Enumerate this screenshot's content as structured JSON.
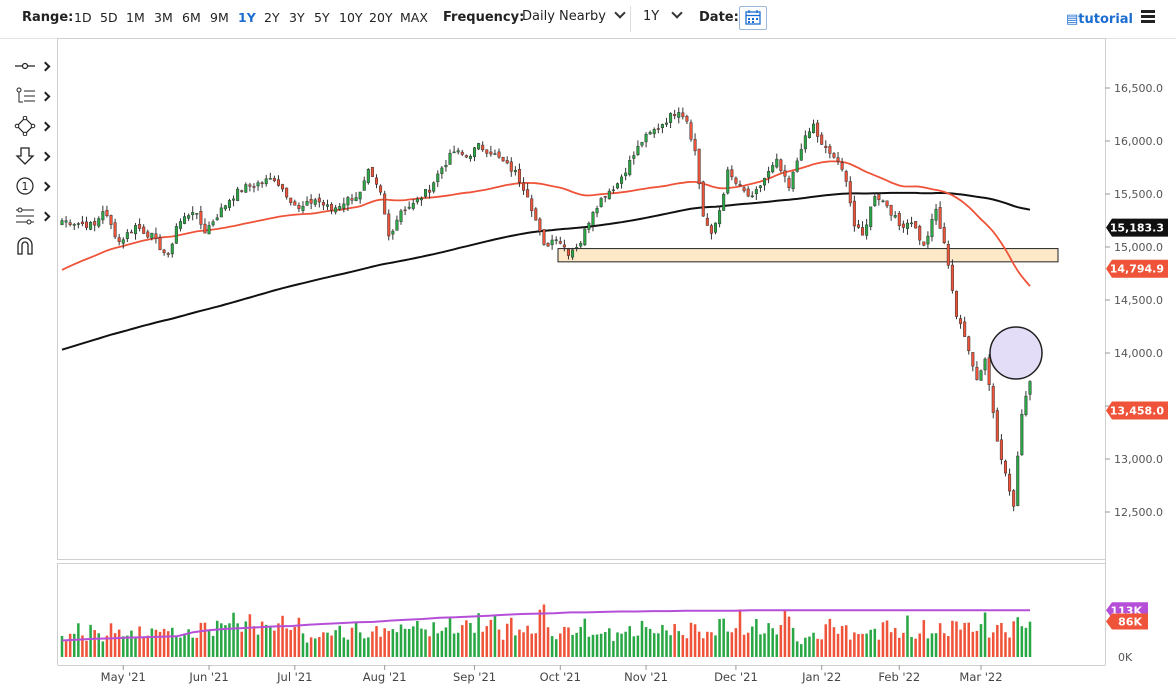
{
  "toolbar": {
    "range_label": "Range:",
    "ranges": [
      "1D",
      "5D",
      "1M",
      "3M",
      "6M",
      "9M",
      "1Y",
      "2Y",
      "3Y",
      "5Y",
      "10Y",
      "20Y",
      "MAX"
    ],
    "active_range": "1Y",
    "frequency_label": "Frequency:",
    "frequency_value": "Daily Nearby",
    "period_value": "1Y",
    "date_label": "Date:",
    "tutorial_label": "tutorial"
  },
  "tools": [
    {
      "icon": "crosshair-icon",
      "glyph": "-○-"
    },
    {
      "icon": "trendline-tools-icon",
      "glyph": "⦸"
    },
    {
      "icon": "shapes-icon",
      "glyph": "◇"
    },
    {
      "icon": "arrow-down-icon",
      "glyph": "⇩"
    },
    {
      "icon": "text-annotation-icon",
      "glyph": "①"
    },
    {
      "icon": "fibonacci-icon",
      "glyph": "⋮"
    },
    {
      "icon": "magnet-icon",
      "glyph": "∩"
    }
  ],
  "chart_data": {
    "type": "candlestick",
    "x_labels": [
      "May '21",
      "Jun '21",
      "Jul '21",
      "Aug '21",
      "Sep '21",
      "Oct '21",
      "Nov '21",
      "Dec '21",
      "Jan '22",
      "Feb '22",
      "Mar '22"
    ],
    "price_axis": {
      "ticks": [
        "16,500.0",
        "16,000.0",
        "15,500.0",
        "15,000.0",
        "14,500.0",
        "14,000.0",
        "13,500.0",
        "13,000.0",
        "12,500.0"
      ],
      "min": 12200,
      "max": 16900
    },
    "price_badges": [
      {
        "label": "15,183.3",
        "value": 15183.3,
        "color": "#111111",
        "text_color": "#ffffff"
      },
      {
        "label": "14,794.9",
        "value": 14794.9,
        "color": "#ef5339",
        "text_color": "#ffffff"
      },
      {
        "label": "13,458.0",
        "value": 13458.0,
        "color": "#ef5339",
        "text_color": "#ffffff"
      }
    ],
    "volume_axis": {
      "zero_label": "0K",
      "max_value": 150
    },
    "volume_badges": [
      {
        "label": "113K",
        "value": 113,
        "color": "#b54fd8"
      },
      {
        "label": "86K",
        "value": 86,
        "color": "#ef5339"
      }
    ],
    "support_zone": {
      "low": 14860,
      "high": 14985
    },
    "colors": {
      "up": "#2aa745",
      "down": "#ef5339",
      "ma_short": "#ef5339",
      "ma_long": "#111111",
      "vol_avg": "#b54fd8",
      "zone_fill": "#fde9c8",
      "circle_fill": "#d9d1f5",
      "circle_stroke": "#222222"
    },
    "close_path": [
      [
        0,
        15250
      ],
      [
        8,
        15200
      ],
      [
        10,
        15350
      ],
      [
        14,
        15050
      ],
      [
        18,
        15200
      ],
      [
        22,
        15100
      ],
      [
        26,
        14900
      ],
      [
        28,
        15200
      ],
      [
        32,
        15350
      ],
      [
        35,
        15150
      ],
      [
        38,
        15300
      ],
      [
        41,
        15450
      ],
      [
        44,
        15550
      ],
      [
        48,
        15600
      ],
      [
        52,
        15650
      ],
      [
        55,
        15500
      ],
      [
        58,
        15350
      ],
      [
        62,
        15450
      ],
      [
        66,
        15350
      ],
      [
        70,
        15450
      ],
      [
        73,
        15500
      ],
      [
        75,
        15700
      ],
      [
        78,
        15500
      ],
      [
        80,
        15100
      ],
      [
        83,
        15350
      ],
      [
        86,
        15400
      ],
      [
        90,
        15550
      ],
      [
        93,
        15750
      ],
      [
        96,
        15900
      ],
      [
        99,
        15850
      ],
      [
        102,
        15950
      ],
      [
        105,
        15900
      ],
      [
        108,
        15800
      ],
      [
        111,
        15700
      ],
      [
        114,
        15500
      ],
      [
        116,
        15250
      ],
      [
        118,
        15000
      ],
      [
        121,
        15100
      ],
      [
        124,
        14950
      ],
      [
        127,
        15050
      ],
      [
        130,
        15350
      ],
      [
        133,
        15500
      ],
      [
        136,
        15600
      ],
      [
        139,
        15800
      ],
      [
        142,
        16000
      ],
      [
        145,
        16100
      ],
      [
        148,
        16200
      ],
      [
        151,
        16300
      ],
      [
        153,
        16200
      ],
      [
        155,
        15900
      ],
      [
        157,
        15300
      ],
      [
        159,
        15100
      ],
      [
        161,
        15350
      ],
      [
        163,
        15700
      ],
      [
        166,
        15550
      ],
      [
        169,
        15450
      ],
      [
        172,
        15650
      ],
      [
        175,
        15800
      ],
      [
        178,
        15550
      ],
      [
        181,
        15950
      ],
      [
        184,
        16150
      ],
      [
        186,
        15950
      ],
      [
        189,
        15850
      ],
      [
        192,
        15650
      ],
      [
        194,
        15200
      ],
      [
        196,
        15100
      ],
      [
        199,
        15500
      ],
      [
        202,
        15400
      ],
      [
        205,
        15200
      ],
      [
        208,
        15250
      ],
      [
        211,
        15000
      ],
      [
        214,
        15350
      ],
      [
        217,
        14850
      ],
      [
        219,
        14350
      ],
      [
        222,
        14050
      ],
      [
        224,
        13750
      ],
      [
        226,
        13950
      ],
      [
        229,
        13200
      ],
      [
        231,
        12850
      ],
      [
        233,
        12550
      ],
      [
        235,
        13450
      ],
      [
        237,
        13750
      ]
    ],
    "volume_values": [
      45,
      40,
      55,
      60,
      70,
      52,
      48,
      65,
      75,
      58,
      50,
      62,
      70,
      55,
      60,
      48,
      66,
      72,
      58,
      63,
      52,
      68,
      75,
      80,
      60,
      55,
      70,
      88,
      62,
      58,
      66,
      74,
      60,
      55,
      70,
      82,
      65,
      60,
      72,
      78,
      68,
      74,
      92,
      66,
      70,
      80,
      120,
      60,
      55,
      70,
      85,
      68,
      62,
      74,
      88,
      70,
      65,
      92,
      118,
      68
    ],
    "volume_avg": [
      40,
      42,
      44,
      45,
      47,
      48,
      49,
      50,
      60,
      65,
      68,
      70,
      72,
      74,
      75,
      78,
      80,
      82,
      84,
      85,
      88,
      90,
      92,
      95,
      96,
      98,
      100,
      102,
      104,
      105,
      106,
      108,
      108,
      109,
      110,
      110,
      111,
      111,
      112,
      112,
      112,
      112,
      113,
      113,
      113,
      113,
      113,
      113,
      113,
      113,
      113,
      113,
      113,
      113,
      113,
      113,
      113,
      113,
      113,
      113
    ]
  }
}
